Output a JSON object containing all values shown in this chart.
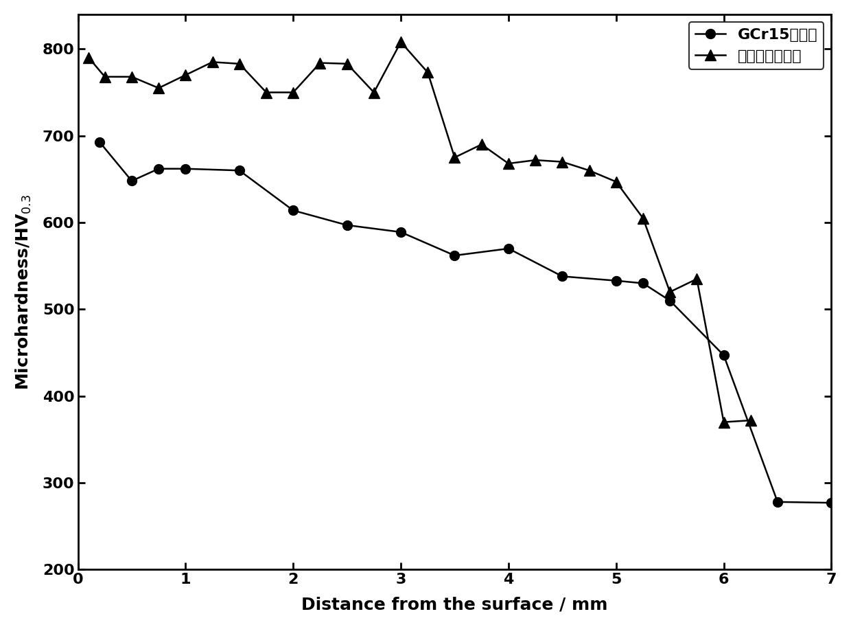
{
  "gcr15_x": [
    0.2,
    0.5,
    0.75,
    1.0,
    1.5,
    2.0,
    2.5,
    3.0,
    3.5,
    4.0,
    4.5,
    5.0,
    5.25,
    5.5,
    6.0,
    6.5,
    7.0
  ],
  "gcr15_y": [
    693,
    648,
    662,
    662,
    660,
    614,
    597,
    589,
    562,
    570,
    538,
    533,
    530,
    510,
    447,
    278,
    277
  ],
  "gradient_x": [
    0.1,
    0.25,
    0.5,
    0.75,
    1.0,
    1.25,
    1.5,
    1.75,
    2.0,
    2.25,
    2.5,
    2.75,
    3.0,
    3.25,
    3.5,
    3.75,
    4.0,
    4.25,
    4.5,
    4.75,
    5.0,
    5.25,
    5.5,
    5.75,
    6.0,
    6.25
  ],
  "gradient_y": [
    790,
    768,
    768,
    755,
    770,
    785,
    783,
    750,
    750,
    784,
    783,
    750,
    808,
    773,
    675,
    690,
    668,
    672,
    670,
    660,
    647,
    605,
    520,
    535,
    370,
    372
  ],
  "xlabel": "Distance from the surface / mm",
  "ylabel": "Microhardness/HV$_{0.3}$",
  "legend1": "GCr15冷轧辊",
  "legend2": "梯度增强冷轧辊",
  "xlim": [
    0,
    7
  ],
  "ylim": [
    200,
    840
  ],
  "yticks": [
    200,
    300,
    400,
    500,
    600,
    700,
    800
  ],
  "xticks": [
    0,
    1,
    2,
    3,
    4,
    5,
    6,
    7
  ],
  "line_color": "#000000",
  "marker_size_circle": 10,
  "marker_size_triangle": 11,
  "axis_fontsize": 18,
  "tick_fontsize": 16,
  "legend_fontsize": 16
}
